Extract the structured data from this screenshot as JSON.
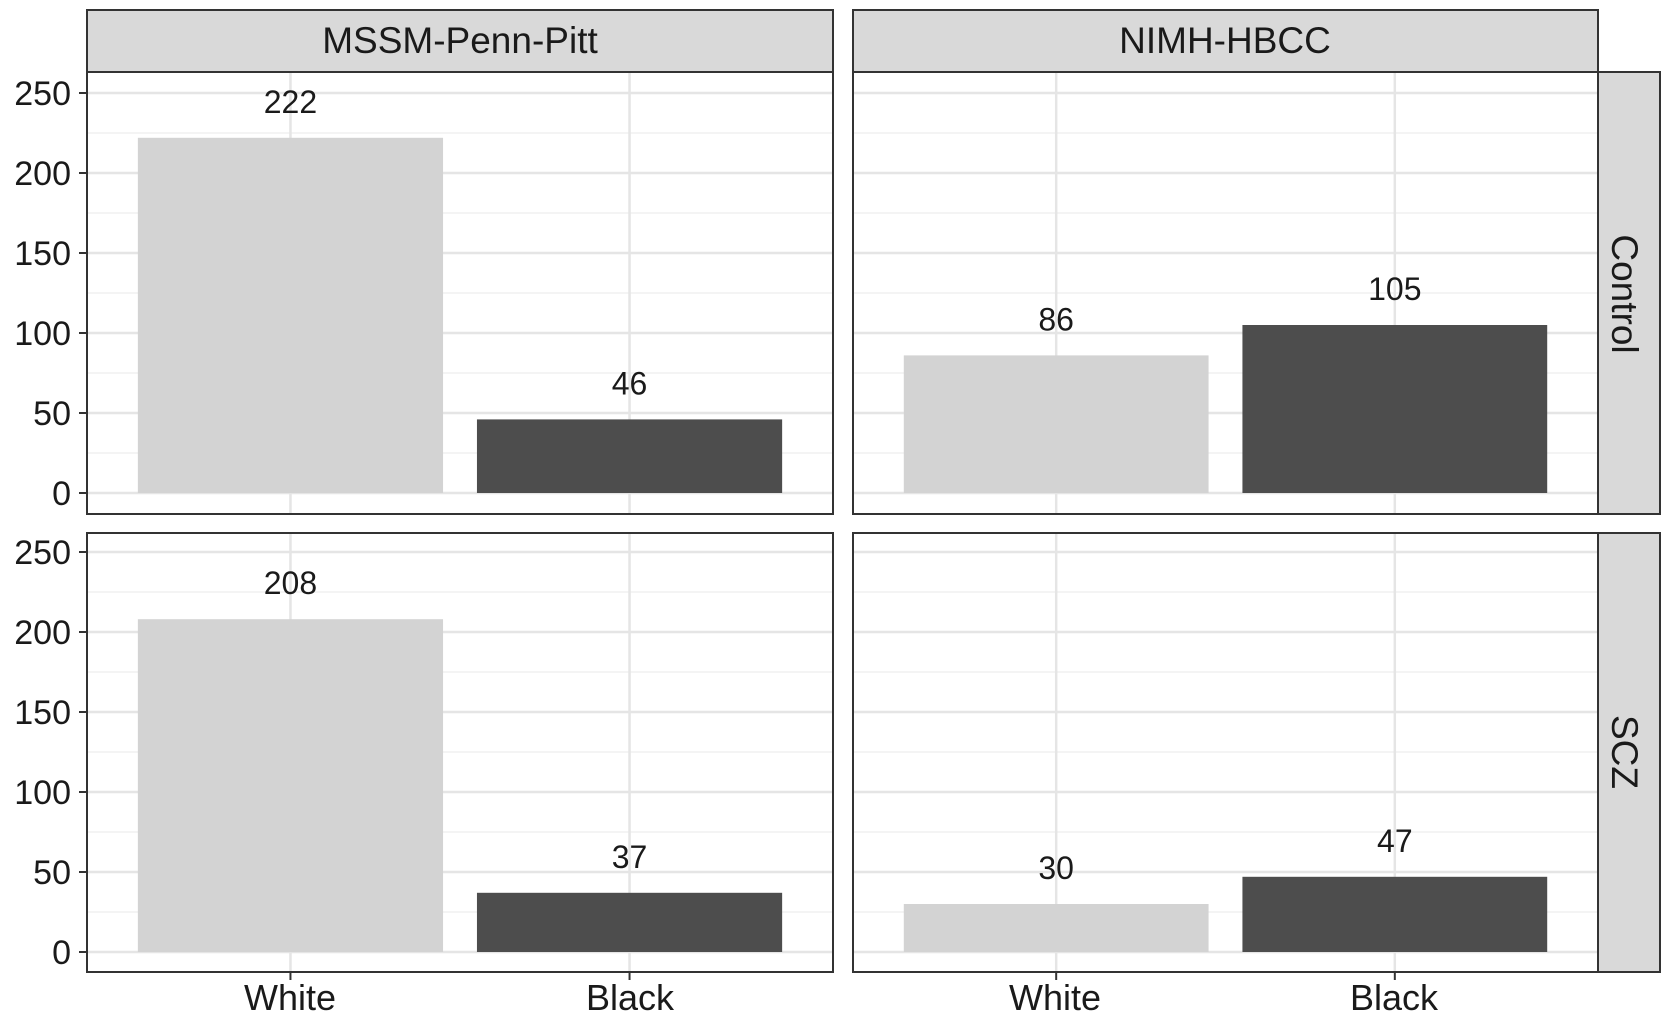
{
  "chart_data": {
    "type": "bar",
    "facet_columns": [
      "MSSM-Penn-Pitt",
      "NIMH-HBCC"
    ],
    "facet_rows": [
      "Control",
      "SCZ"
    ],
    "categories": [
      "White",
      "Black"
    ],
    "bar_colors": {
      "White": "#d3d3d3",
      "Black": "#4d4d4d"
    },
    "ylim": [
      0,
      265
    ],
    "yticks": [
      "0",
      "50",
      "100",
      "150",
      "200",
      "250"
    ],
    "title": "",
    "xlabel": "",
    "ylabel": "",
    "legend": "none",
    "grid": true,
    "panels": [
      {
        "column": "MSSM-Penn-Pitt",
        "row": "Control",
        "values": [
          222,
          46
        ]
      },
      {
        "column": "NIMH-HBCC",
        "row": "Control",
        "values": [
          86,
          105
        ]
      },
      {
        "column": "MSSM-Penn-Pitt",
        "row": "SCZ",
        "values": [
          208,
          37
        ]
      },
      {
        "column": "NIMH-HBCC",
        "row": "SCZ",
        "values": [
          30,
          47
        ]
      }
    ]
  }
}
